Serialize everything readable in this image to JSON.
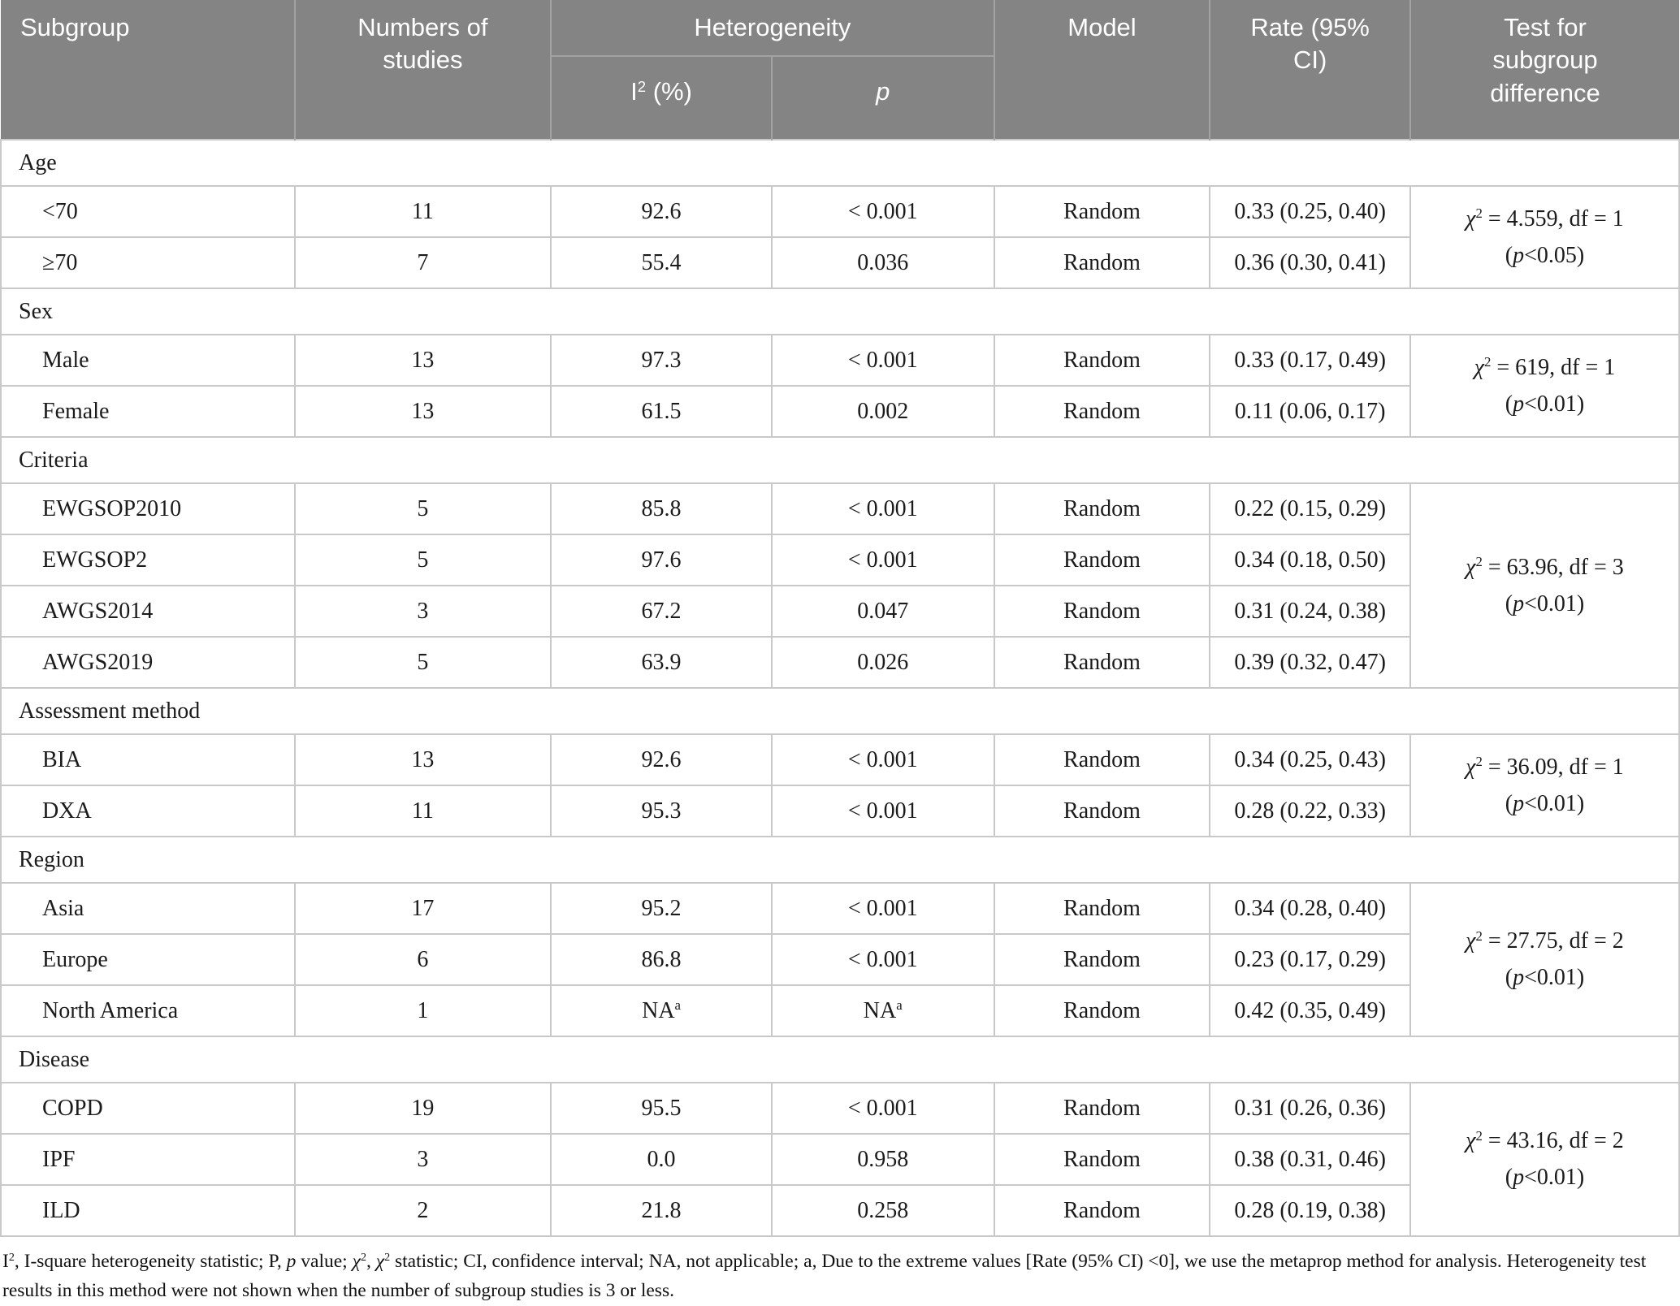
{
  "theme": {
    "header_background": "#848484",
    "header_text": "#ffffff",
    "header_divider": "#a3a3a3",
    "body_border": "#c9c9c9",
    "body_text": "#1b1b1b"
  },
  "header": {
    "subgroup": "Subgroup",
    "studies": "Numbers of\nstudies",
    "heterogeneity": "Heterogeneity",
    "i2": "I^2^ (%)",
    "p": "p",
    "model": "Model",
    "rate": "Rate (95%\nCI)",
    "test": "Test for\nsubgroup\ndifference"
  },
  "sections": [
    {
      "title": "Age",
      "rows": [
        {
          "label": "<70",
          "studies": "11",
          "i2": "92.6",
          "p": "< 0.001",
          "model": "Random",
          "rate": "0.33 (0.25, 0.40)"
        },
        {
          "label": "≥70",
          "studies": "7",
          "i2": "55.4",
          "p": "0.036",
          "model": "Random",
          "rate": "0.36 (0.30, 0.41)"
        }
      ],
      "test_line1": "*χ*^2^ = 4.559, df = 1",
      "test_line2": "(*p*<0.05)"
    },
    {
      "title": "Sex",
      "rows": [
        {
          "label": "Male",
          "studies": "13",
          "i2": "97.3",
          "p": "< 0.001",
          "model": "Random",
          "rate": "0.33 (0.17, 0.49)"
        },
        {
          "label": "Female",
          "studies": "13",
          "i2": "61.5",
          "p": "0.002",
          "model": "Random",
          "rate": "0.11 (0.06, 0.17)"
        }
      ],
      "test_line1": "*χ*^2^ = 619, df = 1",
      "test_line2": "(*p*<0.01)"
    },
    {
      "title": "Criteria",
      "rows": [
        {
          "label": "EWGSOP2010",
          "studies": "5",
          "i2": "85.8",
          "p": "< 0.001",
          "model": "Random",
          "rate": "0.22 (0.15, 0.29)"
        },
        {
          "label": "EWGSOP2",
          "studies": "5",
          "i2": "97.6",
          "p": "< 0.001",
          "model": "Random",
          "rate": "0.34 (0.18, 0.50)"
        },
        {
          "label": "AWGS2014",
          "studies": "3",
          "i2": "67.2",
          "p": "0.047",
          "model": "Random",
          "rate": "0.31 (0.24, 0.38)"
        },
        {
          "label": "AWGS2019",
          "studies": "5",
          "i2": "63.9",
          "p": "0.026",
          "model": "Random",
          "rate": "0.39 (0.32, 0.47)"
        }
      ],
      "test_line1": "*χ*^2^ = 63.96, df = 3",
      "test_line2": "(*p*<0.01)"
    },
    {
      "title": "Assessment method",
      "rows": [
        {
          "label": "BIA",
          "studies": "13",
          "i2": "92.6",
          "p": "< 0.001",
          "model": "Random",
          "rate": "0.34 (0.25, 0.43)"
        },
        {
          "label": "DXA",
          "studies": "11",
          "i2": "95.3",
          "p": "< 0.001",
          "model": "Random",
          "rate": "0.28 (0.22, 0.33)"
        }
      ],
      "test_line1": "*χ*^2^ = 36.09, df = 1",
      "test_line2": "(*p*<0.01)"
    },
    {
      "title": "Region",
      "rows": [
        {
          "label": "Asia",
          "studies": "17",
          "i2": "95.2",
          "p": "< 0.001",
          "model": "Random",
          "rate": "0.34 (0.28, 0.40)"
        },
        {
          "label": "Europe",
          "studies": "6",
          "i2": "86.8",
          "p": "< 0.001",
          "model": "Random",
          "rate": "0.23 (0.17, 0.29)"
        },
        {
          "label": "North America",
          "studies": "1",
          "i2": "NA^a^",
          "p": "NA^a^",
          "model": "Random",
          "rate": "0.42 (0.35, 0.49)"
        }
      ],
      "test_line1": "*χ*^2^ = 27.75, df = 2",
      "test_line2": "(*p*<0.01)"
    },
    {
      "title": "Disease",
      "rows": [
        {
          "label": "COPD",
          "studies": "19",
          "i2": "95.5",
          "p": "< 0.001",
          "model": "Random",
          "rate": "0.31 (0.26, 0.36)"
        },
        {
          "label": "IPF",
          "studies": "3",
          "i2": "0.0",
          "p": "0.958",
          "model": "Random",
          "rate": "0.38 (0.31, 0.46)"
        },
        {
          "label": "ILD",
          "studies": "2",
          "i2": "21.8",
          "p": "0.258",
          "model": "Random",
          "rate": "0.28 (0.19, 0.38)"
        }
      ],
      "test_line1": "*χ*^2^ = 43.16, df = 2",
      "test_line2": "(*p*<0.01)"
    }
  ],
  "footnote": "I^2^, I-square heterogeneity statistic; P, *p* value; *χ*^2^, *χ*^2^ statistic; CI, confidence interval; NA, not applicable; a, Due to the extreme values [Rate (95% CI) <0], we use the metaprop method for analysis. Heterogeneity test results in this method were not shown when the number of subgroup studies is 3 or less."
}
